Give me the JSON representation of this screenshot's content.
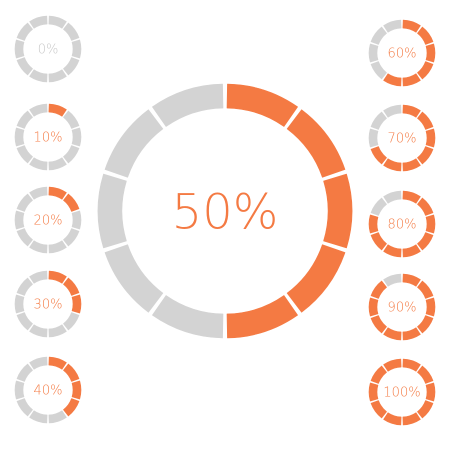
{
  "colors": {
    "active": "#f47a43",
    "inactive": "#d3d3d3",
    "background": "#ffffff"
  },
  "segments_per_ring": 10,
  "main_gauge": {
    "label": "50%",
    "value": 0.5
  },
  "gauges": [
    {
      "label": "0%",
      "value": 0.0
    },
    {
      "label": "10%",
      "value": 0.1
    },
    {
      "label": "20%",
      "value": 0.2
    },
    {
      "label": "30%",
      "value": 0.3
    },
    {
      "label": "40%",
      "value": 0.4
    },
    {
      "label": "60%",
      "value": 0.6
    },
    {
      "label": "70%",
      "value": 0.7
    },
    {
      "label": "80%",
      "value": 0.8
    },
    {
      "label": "90%",
      "value": 0.9
    },
    {
      "label": "100%",
      "value": 1.0
    }
  ]
}
